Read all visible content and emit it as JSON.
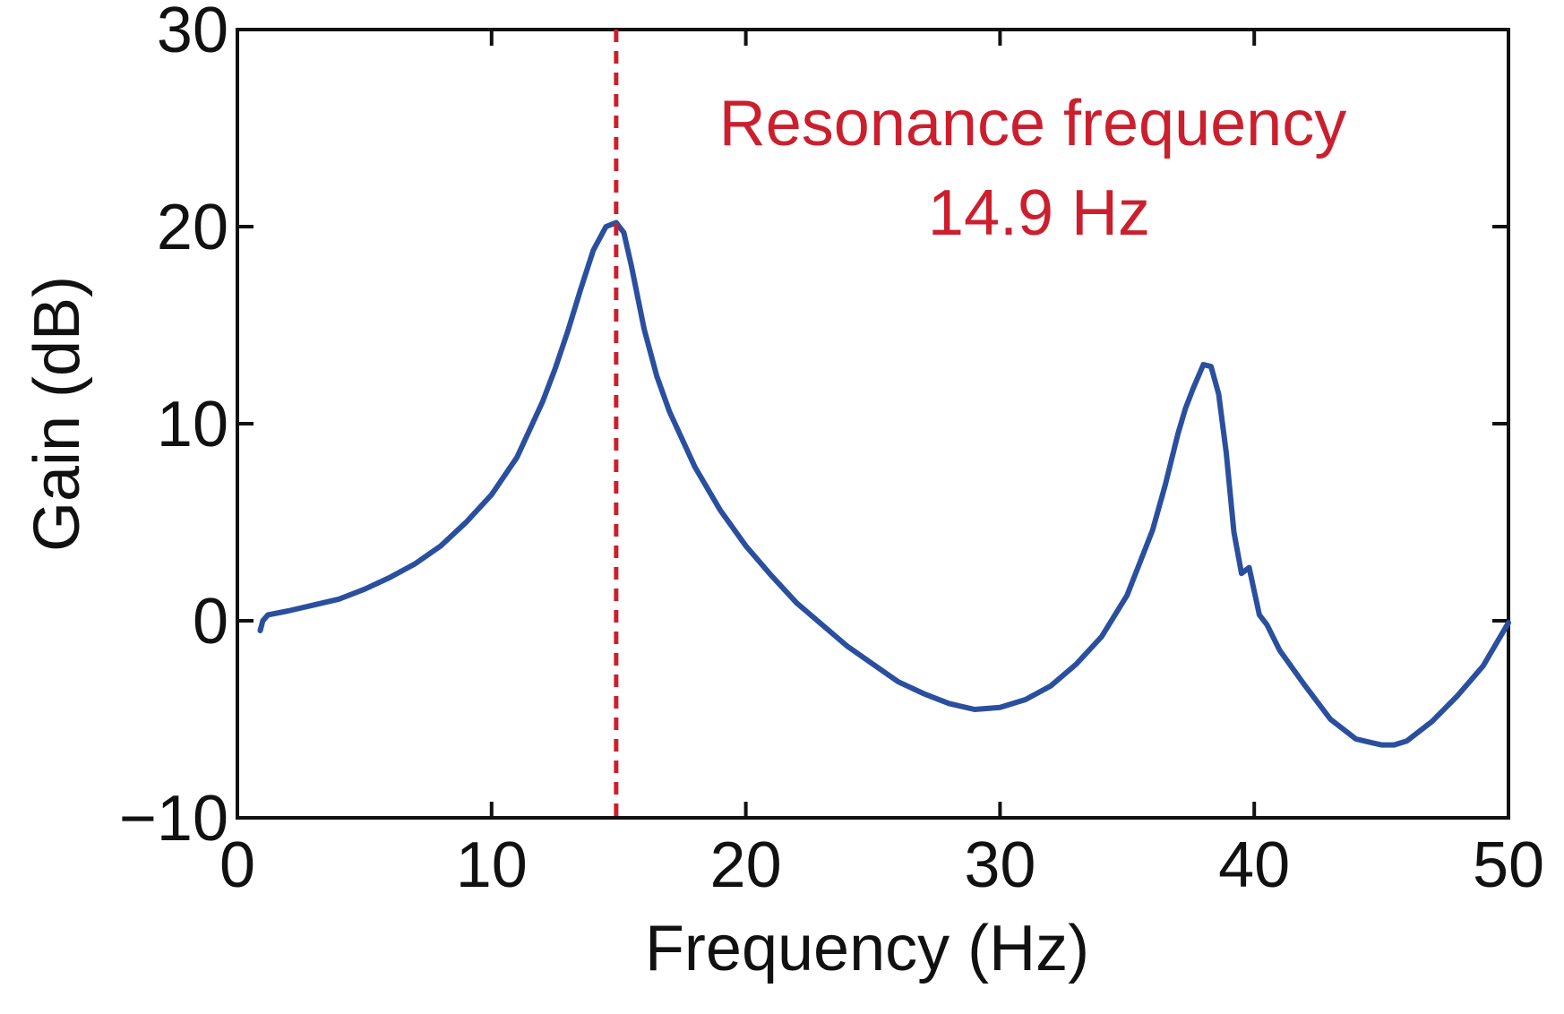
{
  "chart_data": {
    "type": "line",
    "title": "",
    "xlabel": "Frequency (Hz)",
    "ylabel": "Gain (dB)",
    "xlim": [
      0,
      50
    ],
    "ylim": [
      -10,
      30
    ],
    "xticks": [
      0,
      10,
      20,
      30,
      40,
      50
    ],
    "yticks": [
      -10,
      0,
      10,
      20,
      30
    ],
    "xtick_labels": [
      "0",
      "10",
      "20",
      "30",
      "40",
      "50"
    ],
    "ytick_labels": [
      "−10",
      "0",
      "10",
      "20",
      "30"
    ],
    "grid": false,
    "series": [
      {
        "name": "Gain",
        "color": "#2a4f9e",
        "x": [
          0.9,
          1.0,
          1.2,
          2,
          3,
          4,
          5,
          6,
          7,
          8,
          9,
          10,
          11,
          12,
          12.5,
          13,
          13.5,
          14,
          14.5,
          14.9,
          15.2,
          15.5,
          16,
          16.5,
          17,
          18,
          19,
          20,
          21,
          22,
          23,
          24,
          25,
          26,
          27,
          28,
          29,
          30,
          31,
          32,
          33,
          34,
          35,
          36,
          36.5,
          37,
          37.3,
          37.6,
          38.0,
          38.3,
          38.6,
          38.9,
          39.2,
          39.5,
          39.6,
          39.8,
          40.0,
          40.2,
          40.5,
          41,
          42,
          43,
          44,
          45,
          45.5,
          46,
          47,
          48,
          49,
          50
        ],
        "y": [
          -0.5,
          0.0,
          0.3,
          0.5,
          0.8,
          1.1,
          1.6,
          2.2,
          2.9,
          3.8,
          5.0,
          6.4,
          8.3,
          11.1,
          12.8,
          14.7,
          16.8,
          18.8,
          20.0,
          20.2,
          19.7,
          18.0,
          14.8,
          12.4,
          10.6,
          7.8,
          5.6,
          3.8,
          2.3,
          0.9,
          -0.2,
          -1.3,
          -2.2,
          -3.1,
          -3.7,
          -4.2,
          -4.5,
          -4.4,
          -4.0,
          -3.3,
          -2.2,
          -0.8,
          1.3,
          4.6,
          6.9,
          9.5,
          10.8,
          11.8,
          13.0,
          12.9,
          11.5,
          8.5,
          4.5,
          2.4,
          2.5,
          2.7,
          1.5,
          0.3,
          -0.2,
          -1.5,
          -3.3,
          -5.0,
          -6.0,
          -6.3,
          -6.3,
          -6.1,
          -5.1,
          -3.8,
          -2.3,
          -0.1
        ]
      }
    ],
    "annotations": [
      {
        "type": "vline",
        "x": 14.9,
        "style": "dashed",
        "color": "#cc1f2d",
        "text_line1": "Resonance frequency",
        "text_line2": "14.9 Hz"
      }
    ]
  }
}
